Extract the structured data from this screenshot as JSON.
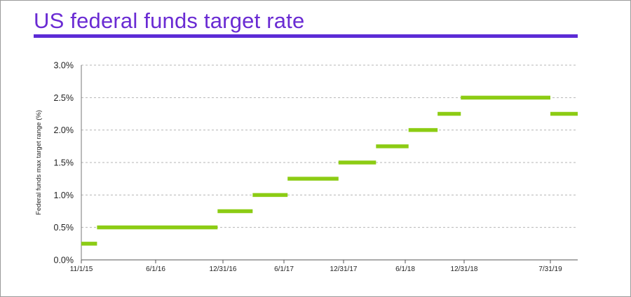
{
  "chart_data": {
    "type": "line",
    "title": "US federal funds target rate",
    "xlabel": "",
    "ylabel": "Federal funds max target range (%)",
    "ylim": [
      0,
      3.0
    ],
    "y_ticks": [
      "0.0%",
      "0.5%",
      "1.0%",
      "1.5%",
      "2.0%",
      "2.5%",
      "3.0%"
    ],
    "x_ticks": [
      "11/1/15",
      "6/1/16",
      "12/31/16",
      "6/1/17",
      "12/31/17",
      "6/1/18",
      "12/31/18",
      "7/31/19"
    ],
    "x_range": [
      "11/1/15",
      "9/30/19"
    ],
    "grid": "horizontal-dashed",
    "legend": "none",
    "color": "#8ccc14",
    "series": [
      {
        "values": [
          {
            "start": "11/1/15",
            "end": "12/16/15",
            "y": 0.25
          },
          {
            "start": "12/16/15",
            "end": "12/14/16",
            "y": 0.5
          },
          {
            "start": "12/14/16",
            "end": "3/15/17",
            "y": 0.75
          },
          {
            "start": "3/15/17",
            "end": "6/14/17",
            "y": 1.0
          },
          {
            "start": "6/14/17",
            "end": "12/13/17",
            "y": 1.25
          },
          {
            "start": "12/13/17",
            "end": "3/21/18",
            "y": 1.5
          },
          {
            "start": "3/21/18",
            "end": "6/13/18",
            "y": 1.75
          },
          {
            "start": "6/13/18",
            "end": "9/26/18",
            "y": 2.0
          },
          {
            "start": "9/26/18",
            "end": "12/19/18",
            "y": 2.25
          },
          {
            "start": "12/19/18",
            "end": "7/31/19",
            "y": 2.5
          },
          {
            "start": "7/31/19",
            "end": "9/30/19",
            "y": 2.25
          }
        ]
      }
    ]
  }
}
